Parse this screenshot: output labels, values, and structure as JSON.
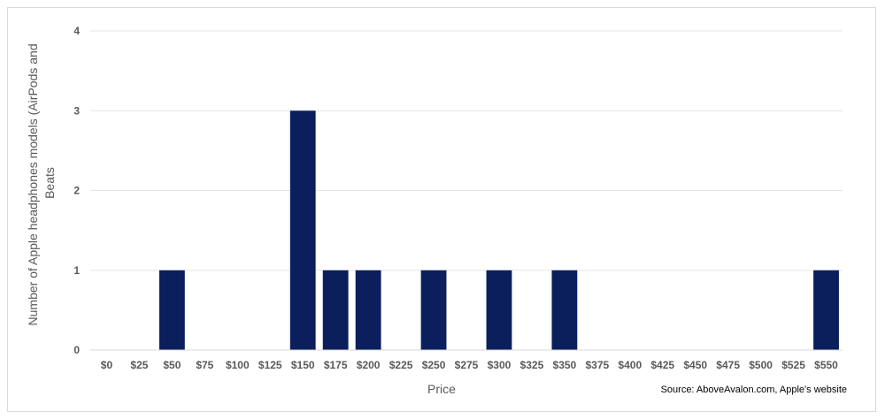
{
  "chart_data": {
    "type": "bar",
    "categories": [
      "$0",
      "$25",
      "$50",
      "$75",
      "$100",
      "$125",
      "$150",
      "$175",
      "$200",
      "$225",
      "$250",
      "$275",
      "$300",
      "$325",
      "$350",
      "$375",
      "$400",
      "$425",
      "$450",
      "$475",
      "$500",
      "$525",
      "$550"
    ],
    "values": [
      0,
      0,
      1,
      0,
      0,
      0,
      3,
      1,
      1,
      0,
      1,
      0,
      1,
      0,
      1,
      0,
      0,
      0,
      0,
      0,
      0,
      0,
      1
    ],
    "title": "",
    "xlabel": "Price",
    "ylabel_lines": [
      "Number of Apple headphones models (AirPods and",
      "Beats"
    ],
    "ylim": [
      0,
      4
    ],
    "yticks": [
      "0",
      "1",
      "2",
      "3",
      "4"
    ],
    "grid": true,
    "legend": "none",
    "bar_color": "#0b1f5c",
    "gridline_color": "#e6e6e6",
    "source": "Source: AboveAvalon.com, Apple's website"
  }
}
